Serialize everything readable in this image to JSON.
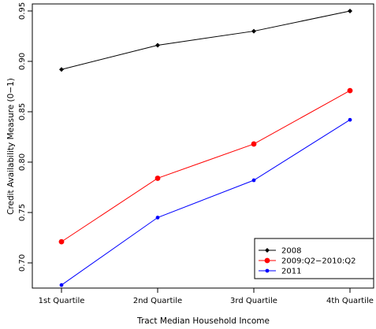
{
  "chart_data": {
    "type": "line",
    "title": "",
    "xlabel": "Tract Median Household Income",
    "ylabel": "Credit Availability Measure (0−1)",
    "categories": [
      "1st Quartile",
      "2nd Quartile",
      "3rd Quartile",
      "4th Quartile"
    ],
    "ylim": [
      0.675,
      0.957
    ],
    "yticks": [
      0.7,
      0.75,
      0.8,
      0.85,
      0.9,
      0.95
    ],
    "ytick_labels": [
      "0.70",
      "0.75",
      "0.80",
      "0.85",
      "0.90",
      "0.95"
    ],
    "grid": false,
    "legend_position": "bottom-right",
    "series": [
      {
        "name": "2008",
        "color": "#000000",
        "marker": "diamond",
        "values": [
          0.892,
          0.916,
          0.93,
          0.95
        ]
      },
      {
        "name": "2009:Q2−2010:Q2",
        "color": "#ff0000",
        "marker": "circle",
        "values": [
          0.721,
          0.784,
          0.818,
          0.871
        ]
      },
      {
        "name": "2011",
        "color": "#0000ff",
        "marker": "circle-small",
        "values": [
          0.678,
          0.745,
          0.782,
          0.842
        ]
      }
    ]
  }
}
